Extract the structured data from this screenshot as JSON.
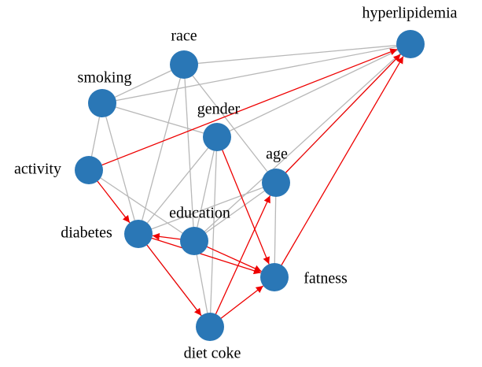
{
  "nodes": [
    {
      "label": "hyperlipidemia"
    },
    {
      "label": "race"
    },
    {
      "label": "smoking"
    },
    {
      "label": "gender"
    },
    {
      "label": "activity"
    },
    {
      "label": "age"
    },
    {
      "label": "diabetes"
    },
    {
      "label": "education"
    },
    {
      "label": "fatness"
    },
    {
      "label": "diet coke"
    }
  ]
}
